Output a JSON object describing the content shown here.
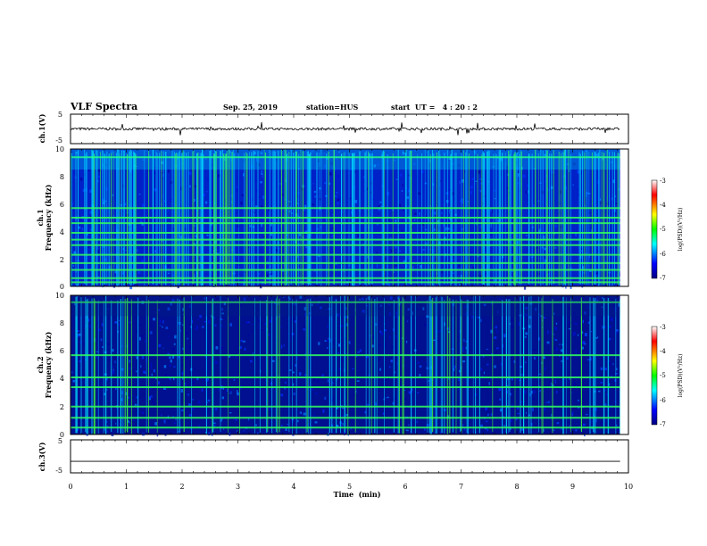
{
  "header": {
    "title": "VLF Spectra",
    "date": "Sep. 25, 2019",
    "station": "station=HUS",
    "start": "start  UT =   4 : 20 : 2"
  },
  "chart_data": [
    {
      "type": "line",
      "name": "ch1-voltage",
      "ylabel": "ch.1(V)",
      "ylim": [
        -5,
        5
      ],
      "yticks": [
        "5",
        "-5"
      ],
      "xlim": [
        0,
        10
      ],
      "baseline": 0,
      "color": "#000000"
    },
    {
      "type": "heatmap",
      "name": "ch1-spectrogram",
      "ylabel_line1": "ch.1",
      "ylabel_line2": "Frequency (kHz)",
      "ylim": [
        0,
        10
      ],
      "yticks": [
        "0",
        "2",
        "4",
        "6",
        "8",
        "10"
      ],
      "xlim": [
        0,
        9.85
      ],
      "bands_khz": [
        0.3,
        0.6,
        1.2,
        1.7,
        2.3,
        3.0,
        3.4,
        3.9,
        4.6,
        5.0,
        5.7,
        9.4
      ],
      "colorbar": {
        "label": "log(PSD)(V²/Hz)",
        "ticks": [
          "-3",
          "-4",
          "-5",
          "-6",
          "-7"
        ],
        "range": [
          -7,
          -3
        ]
      }
    },
    {
      "type": "heatmap",
      "name": "ch2-spectrogram",
      "ylabel_line1": "ch.2",
      "ylabel_line2": "Frequency (kHz)",
      "ylim": [
        0,
        10
      ],
      "yticks": [
        "0",
        "2",
        "4",
        "6",
        "8",
        "10"
      ],
      "xlim": [
        0,
        9.85
      ],
      "bands_khz": [
        0.5,
        1.2,
        2.0,
        3.4,
        4.1,
        5.7,
        9.5
      ],
      "colorbar": {
        "label": "log(PSD)(V²/Hz)",
        "ticks": [
          "-3",
          "-4",
          "-5",
          "-6",
          "-7"
        ],
        "range": [
          -7,
          -3
        ]
      }
    },
    {
      "type": "line",
      "name": "ch3-voltage",
      "ylabel": "ch.3(V)",
      "ylim": [
        -5,
        5
      ],
      "yticks": [
        "5",
        "-5"
      ],
      "xlim": [
        0,
        10
      ],
      "baseline": -1.5,
      "color": "#000000"
    }
  ],
  "xaxis": {
    "label": "Time  (min)",
    "range": [
      0,
      10
    ],
    "ticks": [
      "0",
      "1",
      "2",
      "3",
      "4",
      "5",
      "6",
      "7",
      "8",
      "9",
      "10"
    ]
  }
}
